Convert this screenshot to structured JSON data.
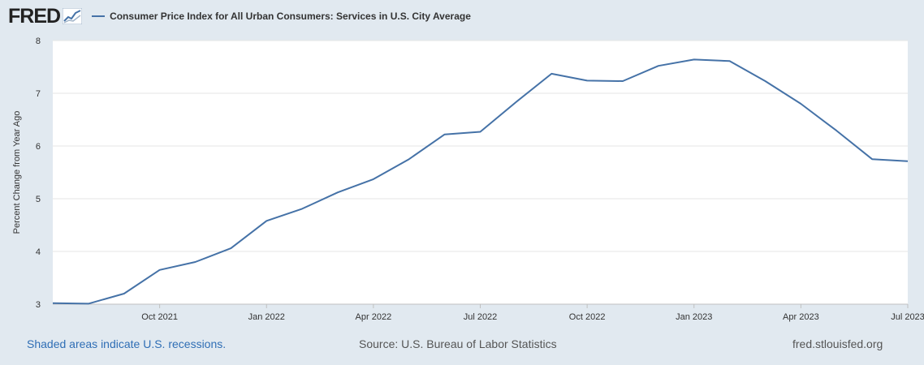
{
  "brand": {
    "logo_text": "FRED"
  },
  "chart_data": {
    "type": "line",
    "title": "Consumer Price Index for All Urban Consumers: Services in U.S. City Average",
    "ylabel": "Percent Change from Year Ago",
    "xlabel": "",
    "ylim": [
      3,
      8
    ],
    "yticks": [
      3,
      4,
      5,
      6,
      7,
      8
    ],
    "grid": true,
    "legend": "top-left",
    "xtick_labels": [
      "Oct 2021",
      "Jan 2022",
      "Apr 2022",
      "Jul 2022",
      "Oct 2022",
      "Jan 2023",
      "Apr 2023",
      "Jul 2023"
    ],
    "series": [
      {
        "name": "Consumer Price Index for All Urban Consumers: Services in U.S. City Average",
        "color": "#4572a7",
        "x": [
          "2021-07",
          "2021-08",
          "2021-09",
          "2021-10",
          "2021-11",
          "2021-12",
          "2022-01",
          "2022-02",
          "2022-03",
          "2022-04",
          "2022-05",
          "2022-06",
          "2022-07",
          "2022-08",
          "2022-09",
          "2022-10",
          "2022-11",
          "2022-12",
          "2023-01",
          "2023-02",
          "2023-03",
          "2023-04",
          "2023-05",
          "2023-06",
          "2023-07"
        ],
        "values": [
          3.02,
          3.01,
          3.2,
          3.65,
          3.8,
          4.06,
          4.58,
          4.81,
          5.12,
          5.37,
          5.75,
          6.22,
          6.27,
          6.83,
          7.37,
          7.24,
          7.23,
          7.52,
          7.64,
          7.61,
          7.23,
          6.8,
          6.29,
          5.75,
          5.71
        ]
      }
    ]
  },
  "footer": {
    "recessions": "Shaded areas indicate U.S. recessions.",
    "source": "Source: U.S. Bureau of Labor Statistics",
    "site": "fred.stlouisfed.org"
  },
  "colors": {
    "background": "#e1e9f0",
    "plot_bg": "#ffffff",
    "line": "#4572a7",
    "link": "#2f6eb5"
  }
}
